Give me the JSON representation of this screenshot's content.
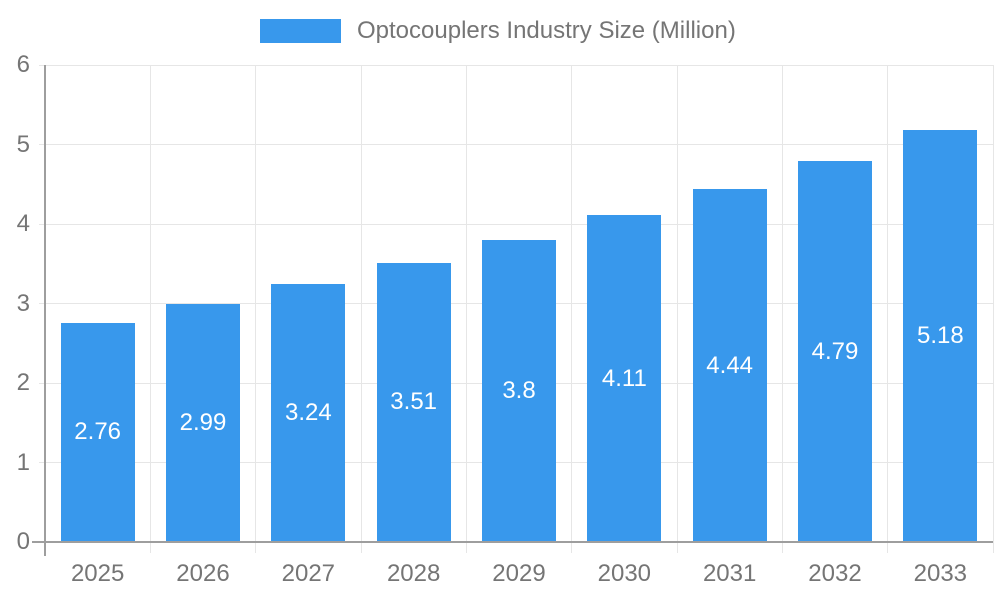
{
  "legend": {
    "label": "Optocouplers Industry Size (Million)"
  },
  "chart_data": {
    "type": "bar",
    "title": "",
    "series_name": "Optocouplers Industry Size (Million)",
    "categories": [
      "2025",
      "2026",
      "2027",
      "2028",
      "2029",
      "2030",
      "2031",
      "2032",
      "2033"
    ],
    "values": [
      2.76,
      2.99,
      3.24,
      3.51,
      3.8,
      4.11,
      4.44,
      4.79,
      5.18
    ],
    "xlabel": "",
    "ylabel": "",
    "ylim": [
      0,
      6
    ],
    "yticks": [
      0,
      1,
      2,
      3,
      4,
      5,
      6
    ],
    "grid": "on",
    "legend_position": "top-center",
    "bar_color": "#3898EC",
    "value_label_color": "#ffffff",
    "axis_label_color": "#757575",
    "axis_line_color": "#9e9e9e",
    "gridline_color": "#e6e6e6"
  }
}
